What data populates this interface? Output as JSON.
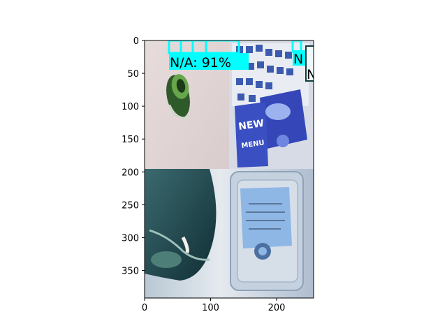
{
  "image": {
    "quadrants": [
      {
        "subject": "green glass bottle neck on pink surface"
      },
      {
        "subject": "blue and white printed wrapper"
      },
      {
        "subject": "dark green bottle lying on white surface"
      },
      {
        "subject": "clear plastic container with blue label"
      }
    ]
  },
  "axes": {
    "xlim": [
      0,
      256
    ],
    "ylim": [
      392,
      0
    ],
    "x_ticks": [
      {
        "value": 0,
        "label": "0"
      },
      {
        "value": 100,
        "label": "100"
      },
      {
        "value": 200,
        "label": "200"
      }
    ],
    "y_ticks": [
      {
        "value": 0,
        "label": "0"
      },
      {
        "value": 50,
        "label": "50"
      },
      {
        "value": 100,
        "label": "100"
      },
      {
        "value": 150,
        "label": "150"
      },
      {
        "value": 200,
        "label": "200"
      },
      {
        "value": 250,
        "label": "250"
      },
      {
        "value": 300,
        "label": "300"
      },
      {
        "value": 350,
        "label": "350"
      }
    ]
  },
  "detections": [
    {
      "label": "N/A: 91%",
      "color": "#00ffff"
    },
    {
      "label": "N",
      "color": "#00ffff"
    },
    {
      "label": "N",
      "color": "#e8f8f8"
    }
  ],
  "colors": {
    "detection_primary": "#00ffff",
    "axis": "#000000"
  }
}
